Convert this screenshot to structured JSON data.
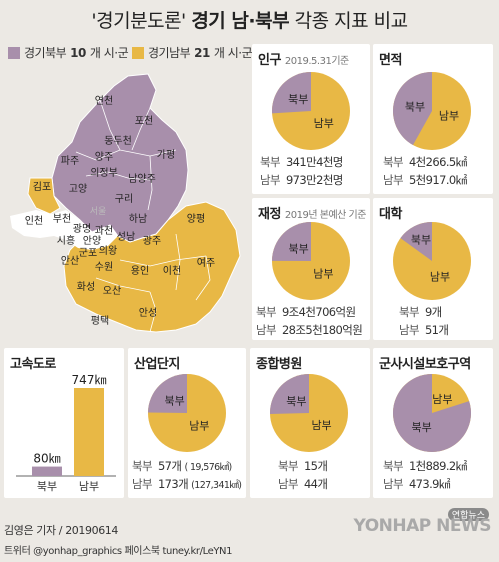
{
  "header": {
    "title_quote": "'경기분도론'",
    "title_bold": "경기 남·북부",
    "title_rest": "각종 지표 비교"
  },
  "legend": {
    "north": {
      "label": "경기북부",
      "count": "10",
      "suffix": "개 시·군"
    },
    "south": {
      "label": "경기남부",
      "count": "21",
      "suffix": "개 시·군"
    }
  },
  "colors": {
    "north": "#a88fab",
    "south": "#e8b845",
    "seoul": "#ffffff",
    "background": "#ece9e4"
  },
  "map_labels": {
    "north": [
      "연천",
      "포천",
      "동두천",
      "양주",
      "파주",
      "가평",
      "의정부",
      "고양",
      "남양주",
      "구리"
    ],
    "south": [
      "김포",
      "인천",
      "부천",
      "서울",
      "하남",
      "양평",
      "광명",
      "과천",
      "시흥",
      "안양",
      "성남",
      "광주",
      "군포",
      "의왕",
      "안산",
      "수원",
      "여주",
      "용인",
      "이천",
      "화성",
      "오산",
      "평택",
      "안성"
    ]
  },
  "panels": {
    "population": {
      "title": "인구",
      "sub": "2019.5.31기준",
      "north_label": "북부",
      "north_value": "341만4천명",
      "south_label": "남부",
      "south_value": "973만2천명"
    },
    "area": {
      "title": "면적",
      "north_label": "북부",
      "north_value": "4천266.5㎢",
      "south_label": "남부",
      "south_value": "5천917.0㎢"
    },
    "finance": {
      "title": "재정",
      "sub": "2019년 본예산 기준",
      "north_label": "북부",
      "north_value": "9조4천706억원",
      "south_label": "남부",
      "south_value": "28조5천180억원"
    },
    "university": {
      "title": "대학",
      "north_label": "북부",
      "north_value": "9개",
      "south_label": "남부",
      "south_value": "51개"
    },
    "highway": {
      "title": "고속도로",
      "north_value": "80㎞",
      "south_value": "747㎞",
      "north_label": "북부",
      "south_label": "남부"
    },
    "industrial": {
      "title": "산업단지",
      "north_label": "북부",
      "north_value": "57개",
      "north_extra": "(  19,576㎢)",
      "south_label": "남부",
      "south_value": "173개",
      "south_extra": "(127,341㎢)"
    },
    "hospital": {
      "title": "종합병원",
      "north_label": "북부",
      "north_value": "15개",
      "south_label": "남부",
      "south_value": "44개"
    },
    "military": {
      "title": "군사시설보호구역",
      "north_label": "북부",
      "north_value": "1천889.2㎢",
      "south_label": "남부",
      "south_value": "473.9㎢"
    }
  },
  "footer": {
    "credit": "김영은 기자 / 20190614",
    "social": "트위터 @yonhap_graphics  페이스북 tuney.kr/LeYN1",
    "brand": "YONHAP NEWS",
    "brand_badge": "연합뉴스"
  },
  "chart_data": [
    {
      "type": "pie",
      "title": "인구",
      "categories": [
        "북부",
        "남부"
      ],
      "values": [
        341.4,
        973.2
      ],
      "unit": "만명"
    },
    {
      "type": "pie",
      "title": "면적",
      "categories": [
        "북부",
        "남부"
      ],
      "values": [
        4266.5,
        5917.0
      ],
      "unit": "㎢"
    },
    {
      "type": "pie",
      "title": "재정",
      "categories": [
        "북부",
        "남부"
      ],
      "values": [
        94706,
        285180
      ],
      "unit": "억원"
    },
    {
      "type": "pie",
      "title": "대학",
      "categories": [
        "북부",
        "남부"
      ],
      "values": [
        9,
        51
      ],
      "unit": "개"
    },
    {
      "type": "bar",
      "title": "고속도로",
      "categories": [
        "북부",
        "남부"
      ],
      "values": [
        80,
        747
      ],
      "unit": "㎞",
      "ylim": [
        0,
        747
      ]
    },
    {
      "type": "pie",
      "title": "산업단지",
      "categories": [
        "북부",
        "남부"
      ],
      "values": [
        57,
        173
      ],
      "unit": "개"
    },
    {
      "type": "pie",
      "title": "종합병원",
      "categories": [
        "북부",
        "남부"
      ],
      "values": [
        15,
        44
      ],
      "unit": "개"
    },
    {
      "type": "pie",
      "title": "군사시설보호구역",
      "categories": [
        "북부",
        "남부"
      ],
      "values": [
        1889.2,
        473.9
      ],
      "unit": "㎢"
    }
  ]
}
